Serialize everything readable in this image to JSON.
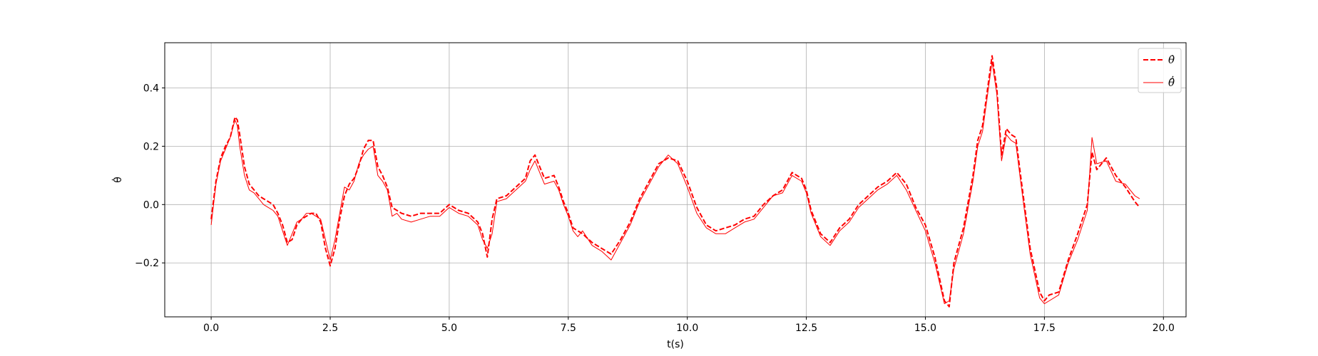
{
  "chart_data": {
    "type": "line",
    "xlabel": "t(s)",
    "ylabel": "θ̇",
    "xlim": [
      -0.975,
      20.475
    ],
    "ylim": [
      -0.385,
      0.555
    ],
    "grid": true,
    "legend_position": "top-right",
    "x_ticks": [
      "0.0",
      "2.5",
      "5.0",
      "7.5",
      "10.0",
      "12.5",
      "15.0",
      "17.5",
      "20.0"
    ],
    "y_ticks": [
      "−0.2",
      "0.0",
      "0.2",
      "0.4"
    ],
    "color": "#ff0000",
    "series": [
      {
        "name": "θ̇",
        "style": "dashed",
        "points": [
          [
            0.0,
            -0.05
          ],
          [
            0.1,
            0.08
          ],
          [
            0.2,
            0.16
          ],
          [
            0.3,
            0.2
          ],
          [
            0.4,
            0.23
          ],
          [
            0.5,
            0.3
          ],
          [
            0.55,
            0.29
          ],
          [
            0.6,
            0.24
          ],
          [
            0.7,
            0.13
          ],
          [
            0.8,
            0.07
          ],
          [
            0.9,
            0.05
          ],
          [
            1.0,
            0.03
          ],
          [
            1.1,
            0.02
          ],
          [
            1.2,
            0.01
          ],
          [
            1.3,
            0.0
          ],
          [
            1.4,
            -0.03
          ],
          [
            1.5,
            -0.07
          ],
          [
            1.6,
            -0.13
          ],
          [
            1.7,
            -0.12
          ],
          [
            1.8,
            -0.07
          ],
          [
            1.9,
            -0.05
          ],
          [
            2.0,
            -0.04
          ],
          [
            2.1,
            -0.03
          ],
          [
            2.2,
            -0.03
          ],
          [
            2.3,
            -0.06
          ],
          [
            2.4,
            -0.15
          ],
          [
            2.5,
            -0.21
          ],
          [
            2.6,
            -0.15
          ],
          [
            2.7,
            -0.05
          ],
          [
            2.8,
            0.03
          ],
          [
            2.9,
            0.07
          ],
          [
            3.0,
            0.09
          ],
          [
            3.1,
            0.13
          ],
          [
            3.2,
            0.19
          ],
          [
            3.3,
            0.22
          ],
          [
            3.4,
            0.22
          ],
          [
            3.5,
            0.13
          ],
          [
            3.6,
            0.1
          ],
          [
            3.7,
            0.06
          ],
          [
            3.8,
            -0.01
          ],
          [
            3.9,
            -0.02
          ],
          [
            4.0,
            -0.03
          ],
          [
            4.2,
            -0.04
          ],
          [
            4.4,
            -0.03
          ],
          [
            4.6,
            -0.03
          ],
          [
            4.8,
            -0.03
          ],
          [
            5.0,
            0.0
          ],
          [
            5.2,
            -0.02
          ],
          [
            5.4,
            -0.03
          ],
          [
            5.6,
            -0.06
          ],
          [
            5.7,
            -0.1
          ],
          [
            5.8,
            -0.18
          ],
          [
            5.9,
            -0.05
          ],
          [
            6.0,
            0.02
          ],
          [
            6.2,
            0.03
          ],
          [
            6.4,
            0.06
          ],
          [
            6.6,
            0.09
          ],
          [
            6.7,
            0.15
          ],
          [
            6.8,
            0.17
          ],
          [
            6.9,
            0.13
          ],
          [
            7.0,
            0.09
          ],
          [
            7.2,
            0.1
          ],
          [
            7.3,
            0.06
          ],
          [
            7.4,
            0.01
          ],
          [
            7.5,
            -0.03
          ],
          [
            7.6,
            -0.08
          ],
          [
            7.7,
            -0.09
          ],
          [
            7.8,
            -0.1
          ],
          [
            8.0,
            -0.13
          ],
          [
            8.2,
            -0.15
          ],
          [
            8.4,
            -0.17
          ],
          [
            8.6,
            -0.12
          ],
          [
            8.8,
            -0.06
          ],
          [
            9.0,
            0.02
          ],
          [
            9.2,
            0.08
          ],
          [
            9.4,
            0.14
          ],
          [
            9.6,
            0.16
          ],
          [
            9.8,
            0.15
          ],
          [
            10.0,
            0.08
          ],
          [
            10.2,
            -0.01
          ],
          [
            10.4,
            -0.07
          ],
          [
            10.6,
            -0.09
          ],
          [
            10.8,
            -0.08
          ],
          [
            11.0,
            -0.07
          ],
          [
            11.2,
            -0.05
          ],
          [
            11.4,
            -0.04
          ],
          [
            11.6,
            0.0
          ],
          [
            11.8,
            0.03
          ],
          [
            12.0,
            0.05
          ],
          [
            12.2,
            0.11
          ],
          [
            12.4,
            0.09
          ],
          [
            12.5,
            0.05
          ],
          [
            12.6,
            -0.02
          ],
          [
            12.8,
            -0.1
          ],
          [
            13.0,
            -0.13
          ],
          [
            13.2,
            -0.08
          ],
          [
            13.4,
            -0.05
          ],
          [
            13.6,
            0.0
          ],
          [
            13.8,
            0.03
          ],
          [
            14.0,
            0.06
          ],
          [
            14.2,
            0.08
          ],
          [
            14.4,
            0.11
          ],
          [
            14.6,
            0.07
          ],
          [
            14.8,
            -0.01
          ],
          [
            15.0,
            -0.07
          ],
          [
            15.2,
            -0.18
          ],
          [
            15.4,
            -0.33
          ],
          [
            15.5,
            -0.35
          ],
          [
            15.6,
            -0.2
          ],
          [
            15.8,
            -0.08
          ],
          [
            16.0,
            0.1
          ],
          [
            16.1,
            0.22
          ],
          [
            16.2,
            0.27
          ],
          [
            16.3,
            0.39
          ],
          [
            16.4,
            0.51
          ],
          [
            16.5,
            0.4
          ],
          [
            16.6,
            0.17
          ],
          [
            16.7,
            0.26
          ],
          [
            16.8,
            0.24
          ],
          [
            16.9,
            0.23
          ],
          [
            17.0,
            0.1
          ],
          [
            17.2,
            -0.15
          ],
          [
            17.4,
            -0.3
          ],
          [
            17.5,
            -0.33
          ],
          [
            17.6,
            -0.31
          ],
          [
            17.8,
            -0.3
          ],
          [
            18.0,
            -0.19
          ],
          [
            18.2,
            -0.1
          ],
          [
            18.4,
            0.0
          ],
          [
            18.5,
            0.18
          ],
          [
            18.6,
            0.12
          ],
          [
            18.8,
            0.16
          ],
          [
            19.0,
            0.1
          ],
          [
            19.2,
            0.06
          ],
          [
            19.4,
            0.01
          ],
          [
            19.5,
            -0.01
          ]
        ]
      },
      {
        "name": "θ̂̇",
        "style": "solid",
        "points": [
          [
            0.0,
            -0.07
          ],
          [
            0.1,
            0.07
          ],
          [
            0.2,
            0.15
          ],
          [
            0.3,
            0.19
          ],
          [
            0.4,
            0.23
          ],
          [
            0.5,
            0.29
          ],
          [
            0.55,
            0.27
          ],
          [
            0.6,
            0.2
          ],
          [
            0.7,
            0.1
          ],
          [
            0.8,
            0.05
          ],
          [
            0.9,
            0.04
          ],
          [
            1.0,
            0.02
          ],
          [
            1.1,
            0.0
          ],
          [
            1.2,
            -0.01
          ],
          [
            1.3,
            -0.02
          ],
          [
            1.4,
            -0.04
          ],
          [
            1.5,
            -0.09
          ],
          [
            1.6,
            -0.14
          ],
          [
            1.7,
            -0.1
          ],
          [
            1.8,
            -0.06
          ],
          [
            1.9,
            -0.05
          ],
          [
            2.0,
            -0.03
          ],
          [
            2.1,
            -0.03
          ],
          [
            2.2,
            -0.04
          ],
          [
            2.3,
            -0.05
          ],
          [
            2.4,
            -0.12
          ],
          [
            2.5,
            -0.19
          ],
          [
            2.6,
            -0.12
          ],
          [
            2.7,
            -0.03
          ],
          [
            2.8,
            0.06
          ],
          [
            2.9,
            0.05
          ],
          [
            3.0,
            0.08
          ],
          [
            3.1,
            0.14
          ],
          [
            3.2,
            0.17
          ],
          [
            3.3,
            0.19
          ],
          [
            3.4,
            0.2
          ],
          [
            3.5,
            0.1
          ],
          [
            3.6,
            0.08
          ],
          [
            3.7,
            0.05
          ],
          [
            3.8,
            -0.04
          ],
          [
            3.9,
            -0.03
          ],
          [
            4.0,
            -0.05
          ],
          [
            4.2,
            -0.06
          ],
          [
            4.4,
            -0.05
          ],
          [
            4.6,
            -0.04
          ],
          [
            4.8,
            -0.04
          ],
          [
            5.0,
            -0.01
          ],
          [
            5.2,
            -0.03
          ],
          [
            5.4,
            -0.04
          ],
          [
            5.6,
            -0.07
          ],
          [
            5.7,
            -0.12
          ],
          [
            5.8,
            -0.15
          ],
          [
            5.9,
            -0.1
          ],
          [
            6.0,
            0.01
          ],
          [
            6.2,
            0.02
          ],
          [
            6.4,
            0.05
          ],
          [
            6.6,
            0.08
          ],
          [
            6.7,
            0.12
          ],
          [
            6.8,
            0.15
          ],
          [
            6.9,
            0.11
          ],
          [
            7.0,
            0.07
          ],
          [
            7.2,
            0.08
          ],
          [
            7.3,
            0.05
          ],
          [
            7.4,
            0.0
          ],
          [
            7.5,
            -0.04
          ],
          [
            7.6,
            -0.09
          ],
          [
            7.7,
            -0.11
          ],
          [
            7.8,
            -0.09
          ],
          [
            8.0,
            -0.14
          ],
          [
            8.2,
            -0.16
          ],
          [
            8.4,
            -0.19
          ],
          [
            8.6,
            -0.13
          ],
          [
            8.8,
            -0.07
          ],
          [
            9.0,
            0.01
          ],
          [
            9.2,
            0.07
          ],
          [
            9.4,
            0.13
          ],
          [
            9.6,
            0.17
          ],
          [
            9.8,
            0.14
          ],
          [
            10.0,
            0.06
          ],
          [
            10.2,
            -0.03
          ],
          [
            10.4,
            -0.08
          ],
          [
            10.6,
            -0.1
          ],
          [
            10.8,
            -0.1
          ],
          [
            11.0,
            -0.08
          ],
          [
            11.2,
            -0.06
          ],
          [
            11.4,
            -0.05
          ],
          [
            11.6,
            -0.01
          ],
          [
            11.8,
            0.03
          ],
          [
            12.0,
            0.04
          ],
          [
            12.2,
            0.1
          ],
          [
            12.4,
            0.08
          ],
          [
            12.5,
            0.04
          ],
          [
            12.6,
            -0.03
          ],
          [
            12.8,
            -0.11
          ],
          [
            13.0,
            -0.14
          ],
          [
            13.2,
            -0.09
          ],
          [
            13.4,
            -0.06
          ],
          [
            13.6,
            -0.01
          ],
          [
            13.8,
            0.02
          ],
          [
            14.0,
            0.05
          ],
          [
            14.2,
            0.07
          ],
          [
            14.4,
            0.1
          ],
          [
            14.6,
            0.05
          ],
          [
            14.8,
            -0.02
          ],
          [
            15.0,
            -0.09
          ],
          [
            15.2,
            -0.2
          ],
          [
            15.4,
            -0.34
          ],
          [
            15.5,
            -0.33
          ],
          [
            15.6,
            -0.22
          ],
          [
            15.8,
            -0.1
          ],
          [
            16.0,
            0.08
          ],
          [
            16.1,
            0.2
          ],
          [
            16.2,
            0.25
          ],
          [
            16.3,
            0.37
          ],
          [
            16.4,
            0.49
          ],
          [
            16.5,
            0.38
          ],
          [
            16.6,
            0.15
          ],
          [
            16.7,
            0.24
          ],
          [
            16.8,
            0.22
          ],
          [
            16.9,
            0.21
          ],
          [
            17.0,
            0.08
          ],
          [
            17.2,
            -0.17
          ],
          [
            17.4,
            -0.32
          ],
          [
            17.5,
            -0.34
          ],
          [
            17.6,
            -0.33
          ],
          [
            17.8,
            -0.31
          ],
          [
            18.0,
            -0.2
          ],
          [
            18.2,
            -0.12
          ],
          [
            18.4,
            -0.02
          ],
          [
            18.5,
            0.23
          ],
          [
            18.6,
            0.14
          ],
          [
            18.8,
            0.15
          ],
          [
            19.0,
            0.08
          ],
          [
            19.2,
            0.07
          ],
          [
            19.4,
            0.03
          ],
          [
            19.5,
            0.02
          ]
        ]
      }
    ]
  }
}
